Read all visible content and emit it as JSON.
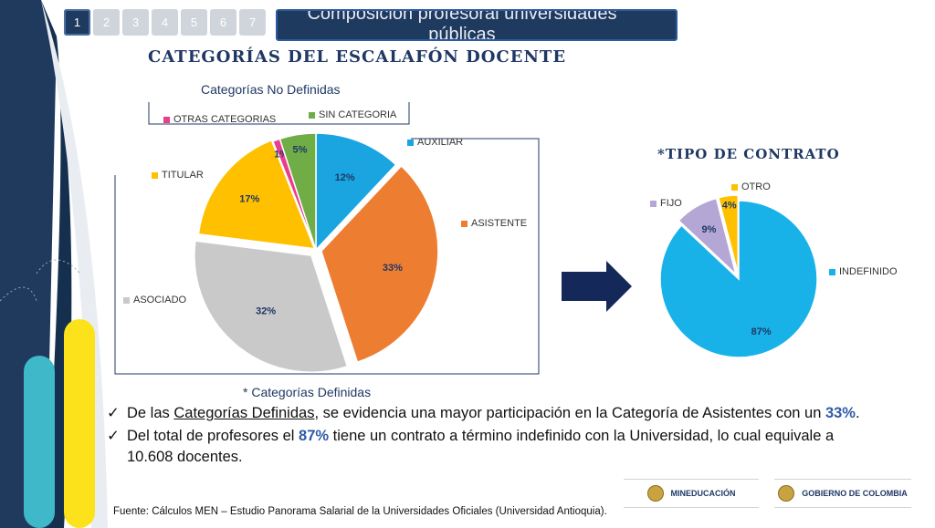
{
  "tabs": [
    "1",
    "2",
    "3",
    "4",
    "5",
    "6",
    "7"
  ],
  "active_tab": 0,
  "title": "Composición profesoral universidades públicas",
  "heading_main": "CATEGORÍAS DEL ESCALAFÓN DOCENTE",
  "heading_right": "*TIPO DE CONTRATO",
  "label_no_definidas": "Categorías No Definidas",
  "label_definidas": "* Categorías Definidas",
  "colors": {
    "navy": "#1f3864",
    "accent": "#2e5aa8",
    "yellow": "#fbe21b",
    "teal": "#3fb8c9"
  },
  "chart_data": [
    {
      "type": "pie",
      "categories": [
        "AUXILIAR",
        "ASISTENTE",
        "ASOCIADO",
        "TITULAR",
        "OTRAS CATEGORIAS",
        "SIN CATEGORIA"
      ],
      "values": [
        12,
        33,
        32,
        17,
        1,
        5
      ],
      "labels": [
        "12%",
        "33%",
        "32%",
        "17%",
        "1%",
        "5%"
      ],
      "colors": [
        "#1aa5e0",
        "#ed7d31",
        "#c9c9c9",
        "#ffc000",
        "#e83e8c",
        "#70ad47"
      ]
    },
    {
      "type": "pie",
      "categories": [
        "INDEFINIDO",
        "FIJO",
        "OTRO"
      ],
      "values": [
        87,
        9,
        4
      ],
      "labels": [
        "87%",
        "9%",
        "4%"
      ],
      "colors": [
        "#19b2e8",
        "#b4a7d6",
        "#ffc000"
      ]
    }
  ],
  "bullets": {
    "b1_pre": "De las ",
    "b1_ul": "Categorías Definidas,",
    "b1_mid": " se evidencia una mayor participación en la Categoría de Asistentes con un ",
    "b1_val": "33%",
    "b1_post": ".",
    "b2_pre": "Del total de profesores el ",
    "b2_val": "87%",
    "b2_post": " tiene un contrato a término indefinido con la Universidad, lo cual equivale a 10.608 docentes."
  },
  "source": "Fuente: Cálculos MEN – Estudio Panorama Salarial de la Universidades Oficiales (Universidad Antioquia).",
  "logos": {
    "men": "MINEDUCACIÓN",
    "gov": "GOBIERNO DE COLOMBIA"
  }
}
